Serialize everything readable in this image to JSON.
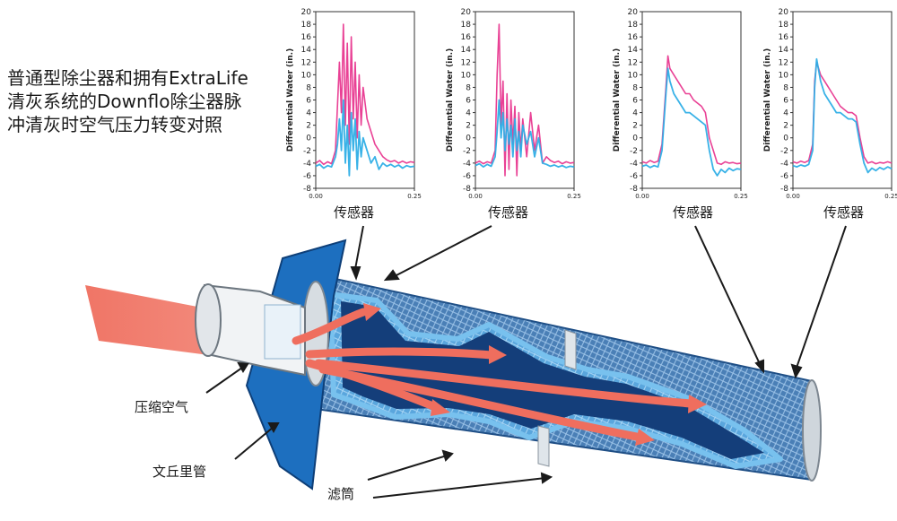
{
  "title_lines": [
    "普通型除尘器和拥有ExtraLife",
    "清灰系统的Downflo除尘器脉",
    "冲清灰时空气压力转变对照"
  ],
  "labels": {
    "sensor": "传感器",
    "compressed_air": "压缩空气",
    "venturi": "文丘里管",
    "filter": "滤筒"
  },
  "chart_data": [
    {
      "type": "line",
      "ylabel": "Differential Water (in.)",
      "xlim": [
        0,
        0.25
      ],
      "ylim": [
        -8,
        20
      ],
      "x_ticks": [
        "0.00",
        "0.25"
      ],
      "y_ticks": [
        20,
        18,
        16,
        14,
        12,
        10,
        8,
        6,
        4,
        2,
        0,
        -2,
        -4,
        -6,
        -8
      ],
      "grid": false,
      "series": [
        {
          "color": "#e8378f",
          "x": [
            0.0,
            0.01,
            0.02,
            0.03,
            0.04,
            0.05,
            0.055,
            0.06,
            0.065,
            0.07,
            0.075,
            0.08,
            0.085,
            0.09,
            0.095,
            0.1,
            0.105,
            0.11,
            0.115,
            0.12,
            0.13,
            0.14,
            0.15,
            0.16,
            0.17,
            0.18,
            0.19,
            0.2,
            0.21,
            0.22,
            0.23,
            0.24,
            0.25
          ],
          "y": [
            -4,
            -3.6,
            -4.2,
            -3.8,
            -4.1,
            -2,
            5,
            12,
            4,
            18,
            2,
            15,
            -1,
            16,
            3,
            12,
            0,
            10,
            2,
            8,
            3,
            1,
            -1,
            -2,
            -3,
            -3.5,
            -3.8,
            -3.6,
            -4,
            -3.7,
            -4,
            -3.8,
            -3.9
          ]
        },
        {
          "color": "#2eaee6",
          "x": [
            0.0,
            0.01,
            0.02,
            0.03,
            0.04,
            0.05,
            0.055,
            0.06,
            0.065,
            0.07,
            0.075,
            0.08,
            0.085,
            0.09,
            0.095,
            0.1,
            0.105,
            0.11,
            0.115,
            0.12,
            0.13,
            0.14,
            0.15,
            0.16,
            0.17,
            0.18,
            0.19,
            0.2,
            0.21,
            0.22,
            0.23,
            0.24,
            0.25
          ],
          "y": [
            -4.5,
            -4.2,
            -4.8,
            -4.4,
            -4.6,
            -3,
            -1,
            3,
            -2,
            6,
            -4,
            2,
            -6,
            4,
            -2,
            3,
            -5,
            1,
            -3,
            0,
            -2,
            -4,
            -3,
            -5,
            -4,
            -4.5,
            -4.2,
            -4.6,
            -4.3,
            -4.8,
            -4.4,
            -4.6,
            -4.5
          ]
        }
      ]
    },
    {
      "type": "line",
      "ylabel": "Differential Water (in.)",
      "xlim": [
        0,
        0.25
      ],
      "ylim": [
        -8,
        20
      ],
      "x_ticks": [
        "0.00",
        "0.25"
      ],
      "y_ticks": [
        20,
        18,
        16,
        14,
        12,
        10,
        8,
        6,
        4,
        2,
        0,
        -2,
        -4,
        -6,
        -8
      ],
      "grid": false,
      "series": [
        {
          "color": "#e8378f",
          "x": [
            0.0,
            0.01,
            0.02,
            0.03,
            0.04,
            0.05,
            0.055,
            0.06,
            0.065,
            0.07,
            0.075,
            0.08,
            0.085,
            0.09,
            0.095,
            0.1,
            0.105,
            0.11,
            0.115,
            0.12,
            0.13,
            0.14,
            0.15,
            0.16,
            0.17,
            0.18,
            0.19,
            0.2,
            0.21,
            0.22,
            0.23,
            0.24,
            0.25
          ],
          "y": [
            -4,
            -3.7,
            -4.1,
            -3.8,
            -4,
            -2,
            10,
            18,
            2,
            9,
            -6,
            7,
            -5,
            6,
            -1,
            5,
            -6,
            4,
            -2,
            3,
            -3,
            4,
            -2,
            2,
            -4,
            -3,
            -3.6,
            -3.9,
            -3.7,
            -4.1,
            -3.8,
            -4,
            -3.9
          ]
        },
        {
          "color": "#2eaee6",
          "x": [
            0.0,
            0.01,
            0.02,
            0.03,
            0.04,
            0.05,
            0.055,
            0.06,
            0.065,
            0.07,
            0.075,
            0.08,
            0.085,
            0.09,
            0.095,
            0.1,
            0.105,
            0.11,
            0.115,
            0.12,
            0.13,
            0.14,
            0.15,
            0.16,
            0.17,
            0.18,
            0.19,
            0.2,
            0.21,
            0.22,
            0.23,
            0.24,
            0.25
          ],
          "y": [
            -4.4,
            -4.1,
            -4.6,
            -4.2,
            -4.5,
            -3,
            1,
            6,
            0,
            4,
            -2,
            3,
            -1,
            2,
            -3,
            3,
            -2,
            1,
            -3,
            2,
            -1,
            1,
            -3,
            0,
            -4,
            -4.2,
            -4.5,
            -4.3,
            -4.6,
            -4.4,
            -4.7,
            -4.5,
            -4.6
          ]
        }
      ]
    },
    {
      "type": "line",
      "ylabel": "Differential Water (in.)",
      "xlim": [
        0,
        0.25
      ],
      "ylim": [
        -8,
        20
      ],
      "x_ticks": [
        "0.00",
        "0.25"
      ],
      "y_ticks": [
        20,
        18,
        16,
        14,
        12,
        10,
        8,
        6,
        4,
        2,
        0,
        -2,
        -4,
        -6,
        -8
      ],
      "grid": false,
      "series": [
        {
          "color": "#e8378f",
          "x": [
            0.0,
            0.01,
            0.02,
            0.03,
            0.04,
            0.05,
            0.06,
            0.065,
            0.07,
            0.08,
            0.09,
            0.1,
            0.11,
            0.12,
            0.13,
            0.14,
            0.15,
            0.16,
            0.17,
            0.18,
            0.19,
            0.2,
            0.21,
            0.22,
            0.23,
            0.24,
            0.25
          ],
          "y": [
            -3.8,
            -4,
            -3.6,
            -3.9,
            -3.7,
            -1,
            8,
            13,
            11,
            10,
            9,
            8,
            7,
            7,
            6,
            5.5,
            5,
            4,
            0,
            -2,
            -4,
            -4.2,
            -3.8,
            -4,
            -3.9,
            -4.1,
            -4
          ]
        },
        {
          "color": "#2eaee6",
          "x": [
            0.0,
            0.01,
            0.02,
            0.03,
            0.04,
            0.05,
            0.06,
            0.065,
            0.07,
            0.08,
            0.09,
            0.1,
            0.11,
            0.12,
            0.13,
            0.14,
            0.15,
            0.16,
            0.17,
            0.18,
            0.19,
            0.2,
            0.21,
            0.22,
            0.23,
            0.24,
            0.25
          ],
          "y": [
            -4.5,
            -4.3,
            -4.7,
            -4.4,
            -4.6,
            -2,
            7,
            11,
            9,
            7,
            6,
            5,
            4,
            4,
            3.5,
            3,
            2.5,
            2,
            -2,
            -5,
            -6,
            -5,
            -5.5,
            -4.8,
            -5.2,
            -4.9,
            -5
          ]
        }
      ]
    },
    {
      "type": "line",
      "ylabel": "Differential Water (in.)",
      "xlim": [
        0,
        0.25
      ],
      "ylim": [
        -8,
        20
      ],
      "x_ticks": [
        "0.00",
        "0.25"
      ],
      "y_ticks": [
        20,
        18,
        16,
        14,
        12,
        10,
        8,
        6,
        4,
        2,
        0,
        -2,
        -4,
        -6,
        -8
      ],
      "grid": false,
      "series": [
        {
          "color": "#e8378f",
          "x": [
            0.0,
            0.01,
            0.02,
            0.03,
            0.04,
            0.05,
            0.055,
            0.06,
            0.07,
            0.08,
            0.09,
            0.1,
            0.11,
            0.12,
            0.13,
            0.14,
            0.15,
            0.16,
            0.17,
            0.18,
            0.19,
            0.2,
            0.21,
            0.22,
            0.23,
            0.24,
            0.25
          ],
          "y": [
            -3.8,
            -4,
            -3.7,
            -3.9,
            -3.6,
            -1,
            9,
            12,
            10,
            9,
            8,
            7,
            6,
            5,
            4.5,
            4,
            4,
            3.5,
            0,
            -3,
            -4,
            -3.8,
            -4.1,
            -3.9,
            -4,
            -3.8,
            -4
          ]
        },
        {
          "color": "#2eaee6",
          "x": [
            0.0,
            0.01,
            0.02,
            0.03,
            0.04,
            0.05,
            0.055,
            0.06,
            0.07,
            0.08,
            0.09,
            0.1,
            0.11,
            0.12,
            0.13,
            0.14,
            0.15,
            0.16,
            0.17,
            0.18,
            0.19,
            0.2,
            0.21,
            0.22,
            0.23,
            0.24,
            0.25
          ],
          "y": [
            -4.4,
            -4.6,
            -4.3,
            -4.5,
            -4.2,
            -2,
            8,
            12.5,
            9,
            7,
            6,
            5,
            4,
            4,
            3.5,
            3,
            3,
            2.5,
            -1,
            -4,
            -5.5,
            -4.8,
            -5.2,
            -4.7,
            -5,
            -4.6,
            -4.9
          ]
        }
      ]
    }
  ]
}
